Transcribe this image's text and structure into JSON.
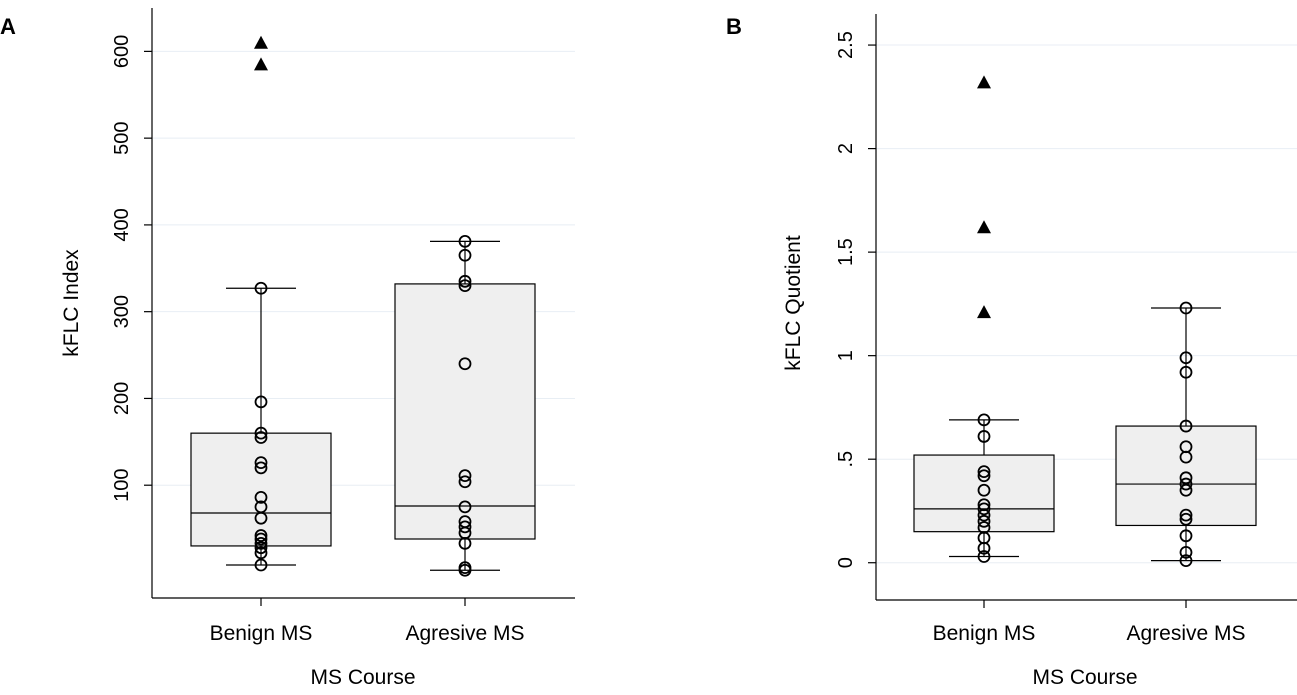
{
  "chart_data": [
    {
      "type": "box",
      "panel": "A",
      "xlabel": "MS Course",
      "ylabel": "kFLC Index",
      "ylim": [
        -30,
        650
      ],
      "yticks": [
        100,
        200,
        300,
        400,
        500,
        600
      ],
      "ytick_labels": [
        "100",
        "200",
        "300",
        "400",
        "500",
        "600"
      ],
      "categories": [
        "Benign MS",
        "Agresive MS"
      ],
      "series": [
        {
          "name": "Benign MS",
          "q1": 30,
          "median": 68,
          "q3": 160,
          "whisker_low": 8,
          "whisker_high": 327,
          "points": [
            8,
            22,
            28,
            33,
            38,
            42,
            62,
            75,
            86,
            120,
            126,
            155,
            160,
            196,
            327
          ],
          "outliers": [
            585,
            610
          ]
        },
        {
          "name": "Agresive MS",
          "q1": 38,
          "median": 76,
          "q3": 332,
          "whisker_low": 2,
          "whisker_high": 381,
          "points": [
            2,
            5,
            33,
            45,
            52,
            58,
            75,
            104,
            111,
            240,
            330,
            335,
            365,
            381
          ],
          "outliers": []
        }
      ]
    },
    {
      "type": "box",
      "panel": "B",
      "xlabel": "MS Course",
      "ylabel": "kFLC Quotient",
      "ylim": [
        -0.18,
        2.65
      ],
      "yticks": [
        0,
        0.5,
        1,
        1.5,
        2,
        2.5
      ],
      "ytick_labels": [
        "0",
        ".5",
        "1",
        "1.5",
        "2",
        "2.5"
      ],
      "categories": [
        "Benign MS",
        "Agresive MS"
      ],
      "series": [
        {
          "name": "Benign MS",
          "q1": 0.15,
          "median": 0.26,
          "q3": 0.52,
          "whisker_low": 0.03,
          "whisker_high": 0.69,
          "points": [
            0.03,
            0.07,
            0.12,
            0.17,
            0.2,
            0.23,
            0.26,
            0.28,
            0.35,
            0.42,
            0.44,
            0.61,
            0.69
          ],
          "outliers": [
            1.21,
            1.62,
            2.32
          ]
        },
        {
          "name": "Agresive MS",
          "q1": 0.18,
          "median": 0.38,
          "q3": 0.66,
          "whisker_low": 0.01,
          "whisker_high": 1.23,
          "points": [
            0.01,
            0.05,
            0.13,
            0.21,
            0.23,
            0.35,
            0.38,
            0.41,
            0.51,
            0.56,
            0.66,
            0.92,
            0.99,
            1.23
          ],
          "outliers": []
        }
      ]
    }
  ]
}
